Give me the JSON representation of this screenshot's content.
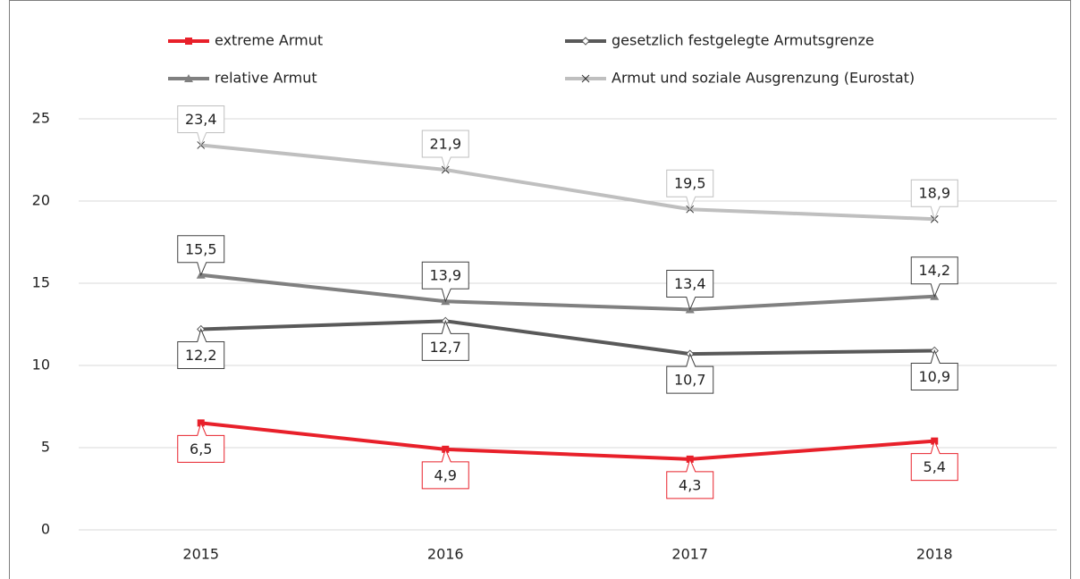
{
  "chart_data": {
    "type": "line",
    "categories": [
      "2015",
      "2016",
      "2017",
      "2018"
    ],
    "ylim": [
      0,
      25
    ],
    "yticks": [
      0,
      5,
      10,
      15,
      20,
      25
    ],
    "grid": true,
    "legend": "top",
    "series": [
      {
        "name": "extreme Armut",
        "color": "#e8202a",
        "marker": "square",
        "label_position": "below",
        "values": [
          6.5,
          4.9,
          4.3,
          5.4
        ],
        "value_labels": [
          "6,5",
          "4,9",
          "4,3",
          "5,4"
        ]
      },
      {
        "name": "gesetzlich festgelegte Armutsgrenze",
        "color": "#595959",
        "marker": "diamond",
        "label_position": "below",
        "values": [
          12.2,
          12.7,
          10.7,
          10.9
        ],
        "value_labels": [
          "12,2",
          "12,7",
          "10,7",
          "10,9"
        ]
      },
      {
        "name": "relative Armut",
        "color": "#808080",
        "marker": "triangle",
        "label_position": "above",
        "values": [
          15.5,
          13.9,
          13.4,
          14.2
        ],
        "value_labels": [
          "15,5",
          "13,9",
          "13,4",
          "14,2"
        ]
      },
      {
        "name": "Armut und soziale Ausgrenzung (Eurostat)",
        "color": "#bfbfbf",
        "marker": "x",
        "label_position": "above",
        "values": [
          23.4,
          21.9,
          19.5,
          18.9
        ],
        "value_labels": [
          "23,4",
          "21,9",
          "19,5",
          "18,9"
        ]
      }
    ]
  }
}
